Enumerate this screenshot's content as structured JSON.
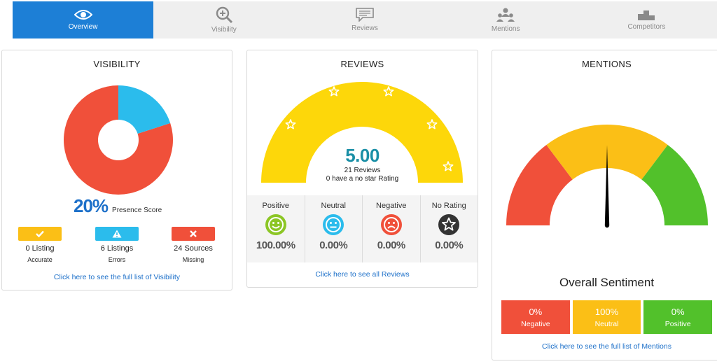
{
  "tabs": [
    {
      "label": "Overview",
      "icon": "eye-icon",
      "active": true
    },
    {
      "label": "Visibility",
      "icon": "magnifier-plus-icon",
      "active": false
    },
    {
      "label": "Reviews",
      "icon": "speech-bubble-icon",
      "active": false
    },
    {
      "label": "Mentions",
      "icon": "people-icon",
      "active": false
    },
    {
      "label": "Competitors",
      "icon": "podium-icon",
      "active": false
    }
  ],
  "visibility": {
    "title": "VISIBILITY",
    "presence_pct": 20,
    "score_value": "20%",
    "score_label": "Presence Score",
    "colors": {
      "present": "#2bbcec",
      "missing": "#f0503a"
    },
    "stats": [
      {
        "count": "0 Listing",
        "label": "Accurate",
        "color": "#fbbf16",
        "icon": "check-icon"
      },
      {
        "count": "6 Listings",
        "label": "Errors",
        "color": "#2bbcec",
        "icon": "warning-icon"
      },
      {
        "count": "24 Sources",
        "label": "Missing",
        "color": "#f0503a",
        "icon": "x-icon"
      }
    ],
    "link": "Click here to see the full list of Visibility"
  },
  "reviews": {
    "title": "REVIEWS",
    "rating": "5.00",
    "review_count": "21 Reviews",
    "no_star_text": "0 have a no star Rating",
    "gauge_color": "#fdd70a",
    "columns": [
      {
        "label": "Positive",
        "percent": "100.00%",
        "icon": "smile-face-icon",
        "color": "#8cc625"
      },
      {
        "label": "Neutral",
        "percent": "0.00%",
        "icon": "neutral-face-icon",
        "color": "#2bbcec"
      },
      {
        "label": "Negative",
        "percent": "0.00%",
        "icon": "sad-face-icon",
        "color": "#f0503a"
      },
      {
        "label": "No Rating",
        "percent": "0.00%",
        "icon": "star-circle-icon",
        "color": "#333333"
      }
    ],
    "link": "Click here to see all Reviews"
  },
  "mentions": {
    "title": "MENTIONS",
    "gauge_colors": {
      "negative": "#f0503a",
      "neutral": "#fbbf16",
      "positive": "#52c12b"
    },
    "needle_fraction": 0.5,
    "sentiment_title": "Overall Sentiment",
    "sentiment": [
      {
        "pct": "0%",
        "label": "Negative",
        "color": "#f0503a"
      },
      {
        "pct": "100%",
        "label": "Neutral",
        "color": "#fbbf16"
      },
      {
        "pct": "0%",
        "label": "Positive",
        "color": "#52c12b"
      }
    ],
    "link": "Click here to see the full list of Mentions"
  }
}
